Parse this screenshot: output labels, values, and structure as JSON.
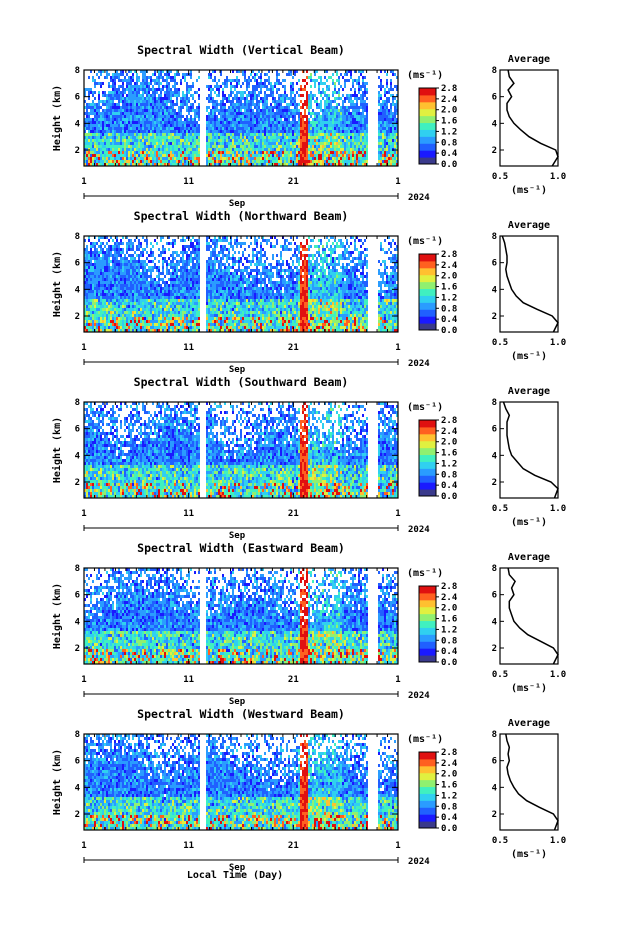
{
  "colors": {
    "scale": [
      "#3a3a8c",
      "#1a1aff",
      "#2060ff",
      "#2a9cff",
      "#30d0f0",
      "#40f0c0",
      "#90f070",
      "#e0f040",
      "#ffc030",
      "#ff6020",
      "#e01010"
    ],
    "line": "#000000"
  },
  "x_axis": {
    "ticks": [
      "1",
      "11",
      "21",
      "1"
    ],
    "month": "Sep",
    "year": "2024",
    "label": "Local Time (Day)"
  },
  "y_axis": {
    "label": "Height (km)",
    "ticks": [
      "2",
      "4",
      "6",
      "8"
    ]
  },
  "side_plot": {
    "title": "Average",
    "x_ticks": [
      "0.5",
      "1.0"
    ],
    "unit_label": "(ms⁻¹)"
  },
  "colorbar_unit": "(ms⁻¹)",
  "chart_data": [
    {
      "type": "heatmap",
      "title": "Spectral Width (Vertical Beam)",
      "xlabel": "",
      "ylabel": "Height (km)",
      "ylim": [
        0.8,
        8.0
      ],
      "colorbar": {
        "ticks": [
          "2.8",
          "2.4",
          "2.0",
          "1.6",
          "1.2",
          "0.8",
          "0.4",
          "0.0"
        ],
        "range": [
          0.0,
          2.8
        ]
      },
      "average": {
        "heights": [
          0.8,
          1.5,
          2.0,
          2.5,
          3.0,
          3.5,
          4.0,
          4.5,
          5.0,
          5.5,
          6.0,
          6.5,
          7.0,
          7.5,
          8.0
        ],
        "values": [
          0.95,
          1.0,
          0.98,
          0.85,
          0.75,
          0.68,
          0.62,
          0.58,
          0.56,
          0.56,
          0.6,
          0.57,
          0.62,
          0.58,
          0.57
        ],
        "xlim": [
          0.5,
          1.0
        ]
      }
    },
    {
      "type": "heatmap",
      "title": "Spectral Width (Northward Beam)",
      "xlabel": "",
      "ylabel": "Height (km)",
      "ylim": [
        0.8,
        8.0
      ],
      "colorbar": {
        "ticks": [
          "2.8",
          "2.4",
          "2.0",
          "1.6",
          "1.2",
          "0.8",
          "0.4",
          "0.0"
        ],
        "range": [
          0.0,
          2.8
        ]
      },
      "average": {
        "heights": [
          0.8,
          1.5,
          2.0,
          2.5,
          3.0,
          3.5,
          4.0,
          4.5,
          5.0,
          5.5,
          6.0,
          6.5,
          7.0,
          7.5,
          8.0
        ],
        "values": [
          0.96,
          1.0,
          0.95,
          0.82,
          0.7,
          0.64,
          0.6,
          0.58,
          0.56,
          0.55,
          0.56,
          0.56,
          0.55,
          0.54,
          0.52
        ],
        "xlim": [
          0.5,
          1.0
        ]
      }
    },
    {
      "type": "heatmap",
      "title": "Spectral Width (Southward Beam)",
      "xlabel": "",
      "ylabel": "Height (km)",
      "ylim": [
        0.8,
        8.0
      ],
      "colorbar": {
        "ticks": [
          "2.8",
          "2.4",
          "2.0",
          "1.6",
          "1.2",
          "0.8",
          "0.4",
          "0.0"
        ],
        "range": [
          0.0,
          2.8
        ]
      },
      "average": {
        "heights": [
          0.8,
          1.5,
          2.0,
          2.5,
          3.0,
          3.5,
          4.0,
          4.5,
          5.0,
          5.5,
          6.0,
          6.5,
          7.0,
          7.5,
          8.0
        ],
        "values": [
          0.97,
          1.0,
          0.94,
          0.8,
          0.7,
          0.65,
          0.6,
          0.58,
          0.57,
          0.56,
          0.56,
          0.56,
          0.58,
          0.55,
          0.53
        ],
        "xlim": [
          0.5,
          1.0
        ]
      }
    },
    {
      "type": "heatmap",
      "title": "Spectral Width (Eastward Beam)",
      "xlabel": "",
      "ylabel": "Height (km)",
      "ylim": [
        0.8,
        8.0
      ],
      "colorbar": {
        "ticks": [
          "2.8",
          "2.4",
          "2.0",
          "1.6",
          "1.2",
          "0.8",
          "0.4",
          "0.0"
        ],
        "range": [
          0.0,
          2.8
        ]
      },
      "average": {
        "heights": [
          0.8,
          1.5,
          2.0,
          2.5,
          3.0,
          3.5,
          4.0,
          4.5,
          5.0,
          5.5,
          6.0,
          6.5,
          7.0,
          7.5,
          8.0
        ],
        "values": [
          0.96,
          1.0,
          0.96,
          0.85,
          0.74,
          0.67,
          0.62,
          0.6,
          0.58,
          0.58,
          0.62,
          0.6,
          0.63,
          0.58,
          0.57
        ],
        "xlim": [
          0.5,
          1.0
        ]
      }
    },
    {
      "type": "heatmap",
      "title": "Spectral Width (Westward Beam)",
      "xlabel": "Local Time (Day)",
      "ylabel": "Height (km)",
      "ylim": [
        0.8,
        8.0
      ],
      "colorbar": {
        "ticks": [
          "2.8",
          "2.4",
          "2.0",
          "1.6",
          "1.2",
          "0.8",
          "0.4",
          "0.0"
        ],
        "range": [
          0.0,
          2.8
        ]
      },
      "average": {
        "heights": [
          0.8,
          1.5,
          2.0,
          2.5,
          3.0,
          3.5,
          4.0,
          4.5,
          5.0,
          5.5,
          6.0,
          6.5,
          7.0,
          7.5,
          8.0
        ],
        "values": [
          0.97,
          1.0,
          0.96,
          0.84,
          0.73,
          0.66,
          0.62,
          0.59,
          0.57,
          0.56,
          0.58,
          0.57,
          0.58,
          0.56,
          0.55
        ],
        "xlim": [
          0.5,
          1.0
        ]
      }
    }
  ]
}
